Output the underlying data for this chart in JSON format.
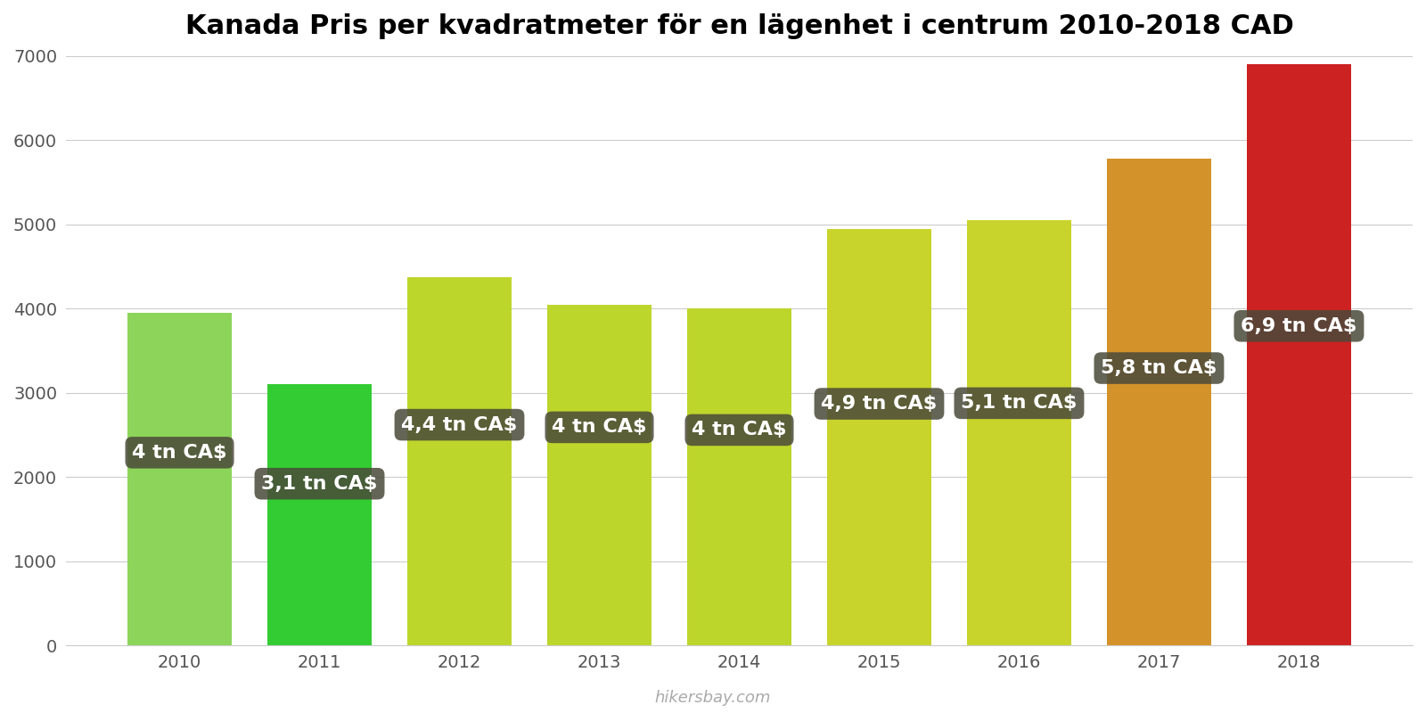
{
  "title": "Kanada Pris per kvadratmeter för en lägenhet i centrum 2010-2018 CAD",
  "years": [
    2010,
    2011,
    2012,
    2013,
    2014,
    2015,
    2016,
    2017,
    2018
  ],
  "values": [
    3950,
    3100,
    4370,
    4050,
    4000,
    4950,
    5050,
    5780,
    6900
  ],
  "bar_colors": [
    "#8cd45a",
    "#33cc33",
    "#bdd62b",
    "#bdd62b",
    "#bdd62b",
    "#c8d42b",
    "#c8d42b",
    "#d4922a",
    "#cc2222"
  ],
  "labels": [
    "4 tn CA$",
    "3,1 tn CA$",
    "4,4 tn CA$",
    "4 tn CA$",
    "4 tn CA$",
    "4,9 tn CA$",
    "5,1 tn CA$",
    "5,8 tn CA$",
    "6,9 tn CA$"
  ],
  "label_y_fractions": [
    0.58,
    0.62,
    0.6,
    0.64,
    0.64,
    0.58,
    0.57,
    0.57,
    0.55
  ],
  "ylim": [
    0,
    7000
  ],
  "yticks": [
    0,
    1000,
    2000,
    3000,
    4000,
    5000,
    6000,
    7000
  ],
  "background_color": "#ffffff",
  "label_box_color": "#4a4a3a",
  "label_text_color": "#ffffff",
  "watermark": "hikersbay.com",
  "title_fontsize": 22,
  "label_fontsize": 16,
  "tick_fontsize": 14,
  "bar_width": 0.75
}
